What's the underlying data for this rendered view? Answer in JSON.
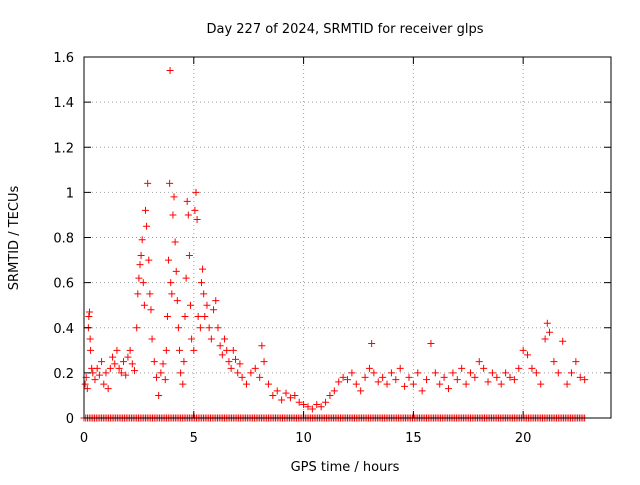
{
  "chart_data": {
    "type": "scatter",
    "title": "Day 227 of 2024, SRMTID for receiver glps",
    "xlabel": "GPS time / hours",
    "ylabel": "SRMTID / TECUs",
    "xlim": [
      0,
      24
    ],
    "ylim": [
      0,
      1.6
    ],
    "x_ticks": [
      0,
      5,
      10,
      15,
      20
    ],
    "x_tick_labels": [
      "0",
      "5",
      "10",
      "15",
      "20"
    ],
    "y_ticks": [
      0,
      0.2,
      0.4,
      0.6,
      0.8,
      1.0,
      1.2,
      1.4,
      1.6
    ],
    "y_tick_labels": [
      "0",
      "0.2",
      "0.4",
      "0.6",
      "0.8",
      "1",
      "1.2",
      "1.4",
      "1.6"
    ],
    "grid": true,
    "marker": "plus",
    "series_color": "#ff0000",
    "series": [
      {
        "name": "SRMTID",
        "points": [
          [
            0.05,
            0.15
          ],
          [
            0.1,
            0.18
          ],
          [
            0.15,
            0.13
          ],
          [
            0.2,
            0.4
          ],
          [
            0.22,
            0.45
          ],
          [
            0.25,
            0.47
          ],
          [
            0.28,
            0.35
          ],
          [
            0.3,
            0.3
          ],
          [
            0.35,
            0.22
          ],
          [
            0.4,
            0.2
          ],
          [
            0.5,
            0.17
          ],
          [
            0.6,
            0.22
          ],
          [
            0.7,
            0.19
          ],
          [
            0.8,
            0.25
          ],
          [
            0.9,
            0.15
          ],
          [
            1.0,
            0.2
          ],
          [
            1.1,
            0.13
          ],
          [
            1.2,
            0.22
          ],
          [
            1.3,
            0.27
          ],
          [
            1.4,
            0.24
          ],
          [
            1.5,
            0.3
          ],
          [
            1.6,
            0.22
          ],
          [
            1.7,
            0.2
          ],
          [
            1.8,
            0.25
          ],
          [
            1.9,
            0.19
          ],
          [
            2.0,
            0.27
          ],
          [
            2.1,
            0.3
          ],
          [
            2.2,
            0.24
          ],
          [
            2.3,
            0.21
          ],
          [
            2.4,
            0.4
          ],
          [
            2.45,
            0.55
          ],
          [
            2.5,
            0.62
          ],
          [
            2.55,
            0.68
          ],
          [
            2.6,
            0.72
          ],
          [
            2.65,
            0.79
          ],
          [
            2.7,
            0.6
          ],
          [
            2.75,
            0.5
          ],
          [
            2.8,
            0.92
          ],
          [
            2.85,
            0.85
          ],
          [
            2.9,
            1.04
          ],
          [
            2.95,
            0.7
          ],
          [
            3.0,
            0.55
          ],
          [
            3.05,
            0.48
          ],
          [
            3.1,
            0.35
          ],
          [
            3.2,
            0.25
          ],
          [
            3.3,
            0.18
          ],
          [
            3.4,
            0.1
          ],
          [
            3.5,
            0.2
          ],
          [
            3.6,
            0.24
          ],
          [
            3.7,
            0.17
          ],
          [
            3.75,
            0.3
          ],
          [
            3.8,
            0.45
          ],
          [
            3.85,
            0.7
          ],
          [
            3.9,
            1.04
          ],
          [
            3.92,
            1.54
          ],
          [
            3.95,
            0.6
          ],
          [
            4.0,
            0.55
          ],
          [
            4.05,
            0.9
          ],
          [
            4.1,
            0.98
          ],
          [
            4.15,
            0.78
          ],
          [
            4.2,
            0.65
          ],
          [
            4.25,
            0.52
          ],
          [
            4.3,
            0.4
          ],
          [
            4.35,
            0.3
          ],
          [
            4.4,
            0.2
          ],
          [
            4.5,
            0.15
          ],
          [
            4.55,
            0.25
          ],
          [
            4.6,
            0.45
          ],
          [
            4.65,
            0.62
          ],
          [
            4.7,
            0.96
          ],
          [
            4.75,
            0.9
          ],
          [
            4.8,
            0.72
          ],
          [
            4.85,
            0.5
          ],
          [
            4.9,
            0.35
          ],
          [
            5.0,
            0.3
          ],
          [
            5.05,
            0.92
          ],
          [
            5.1,
            1.0
          ],
          [
            5.15,
            0.88
          ],
          [
            5.2,
            0.45
          ],
          [
            5.3,
            0.4
          ],
          [
            5.35,
            0.6
          ],
          [
            5.4,
            0.66
          ],
          [
            5.45,
            0.55
          ],
          [
            5.5,
            0.45
          ],
          [
            5.6,
            0.5
          ],
          [
            5.7,
            0.4
          ],
          [
            5.8,
            0.35
          ],
          [
            5.9,
            0.48
          ],
          [
            6.0,
            0.52
          ],
          [
            6.1,
            0.4
          ],
          [
            6.2,
            0.32
          ],
          [
            6.3,
            0.28
          ],
          [
            6.4,
            0.35
          ],
          [
            6.5,
            0.3
          ],
          [
            6.6,
            0.25
          ],
          [
            6.7,
            0.22
          ],
          [
            6.8,
            0.3
          ],
          [
            6.9,
            0.26
          ],
          [
            7.0,
            0.2
          ],
          [
            7.1,
            0.24
          ],
          [
            7.2,
            0.18
          ],
          [
            7.4,
            0.15
          ],
          [
            7.6,
            0.2
          ],
          [
            7.8,
            0.22
          ],
          [
            8.0,
            0.18
          ],
          [
            8.1,
            0.32
          ],
          [
            8.2,
            0.25
          ],
          [
            8.4,
            0.15
          ],
          [
            8.6,
            0.1
          ],
          [
            8.8,
            0.12
          ],
          [
            9.0,
            0.08
          ],
          [
            9.2,
            0.11
          ],
          [
            9.4,
            0.09
          ],
          [
            9.6,
            0.1
          ],
          [
            9.8,
            0.07
          ],
          [
            10.0,
            0.06
          ],
          [
            10.2,
            0.05
          ],
          [
            10.4,
            0.04
          ],
          [
            10.6,
            0.06
          ],
          [
            10.8,
            0.05
          ],
          [
            11.0,
            0.07
          ],
          [
            11.2,
            0.1
          ],
          [
            11.4,
            0.12
          ],
          [
            11.6,
            0.16
          ],
          [
            11.8,
            0.18
          ],
          [
            12.0,
            0.17
          ],
          [
            12.2,
            0.2
          ],
          [
            12.4,
            0.15
          ],
          [
            12.6,
            0.12
          ],
          [
            12.8,
            0.18
          ],
          [
            13.0,
            0.22
          ],
          [
            13.1,
            0.33
          ],
          [
            13.2,
            0.2
          ],
          [
            13.4,
            0.16
          ],
          [
            13.6,
            0.18
          ],
          [
            13.8,
            0.15
          ],
          [
            14.0,
            0.2
          ],
          [
            14.2,
            0.17
          ],
          [
            14.4,
            0.22
          ],
          [
            14.6,
            0.14
          ],
          [
            14.8,
            0.18
          ],
          [
            15.0,
            0.15
          ],
          [
            15.2,
            0.2
          ],
          [
            15.4,
            0.12
          ],
          [
            15.6,
            0.17
          ],
          [
            15.8,
            0.33
          ],
          [
            16.0,
            0.2
          ],
          [
            16.2,
            0.15
          ],
          [
            16.4,
            0.18
          ],
          [
            16.6,
            0.13
          ],
          [
            16.8,
            0.2
          ],
          [
            17.0,
            0.17
          ],
          [
            17.2,
            0.22
          ],
          [
            17.4,
            0.15
          ],
          [
            17.6,
            0.2
          ],
          [
            17.8,
            0.18
          ],
          [
            18.0,
            0.25
          ],
          [
            18.2,
            0.22
          ],
          [
            18.4,
            0.16
          ],
          [
            18.6,
            0.2
          ],
          [
            18.8,
            0.18
          ],
          [
            19.0,
            0.15
          ],
          [
            19.2,
            0.2
          ],
          [
            19.4,
            0.18
          ],
          [
            19.6,
            0.17
          ],
          [
            19.8,
            0.22
          ],
          [
            20.0,
            0.3
          ],
          [
            20.2,
            0.28
          ],
          [
            20.4,
            0.22
          ],
          [
            20.6,
            0.2
          ],
          [
            20.8,
            0.15
          ],
          [
            21.0,
            0.35
          ],
          [
            21.1,
            0.42
          ],
          [
            21.2,
            0.38
          ],
          [
            21.4,
            0.25
          ],
          [
            21.6,
            0.2
          ],
          [
            21.8,
            0.34
          ],
          [
            22.0,
            0.15
          ],
          [
            22.2,
            0.2
          ],
          [
            22.4,
            0.25
          ],
          [
            22.6,
            0.18
          ],
          [
            22.8,
            0.17
          ]
        ],
        "zero_band_range": [
          0,
          22.8
        ],
        "zero_band_value": 0
      }
    ]
  }
}
